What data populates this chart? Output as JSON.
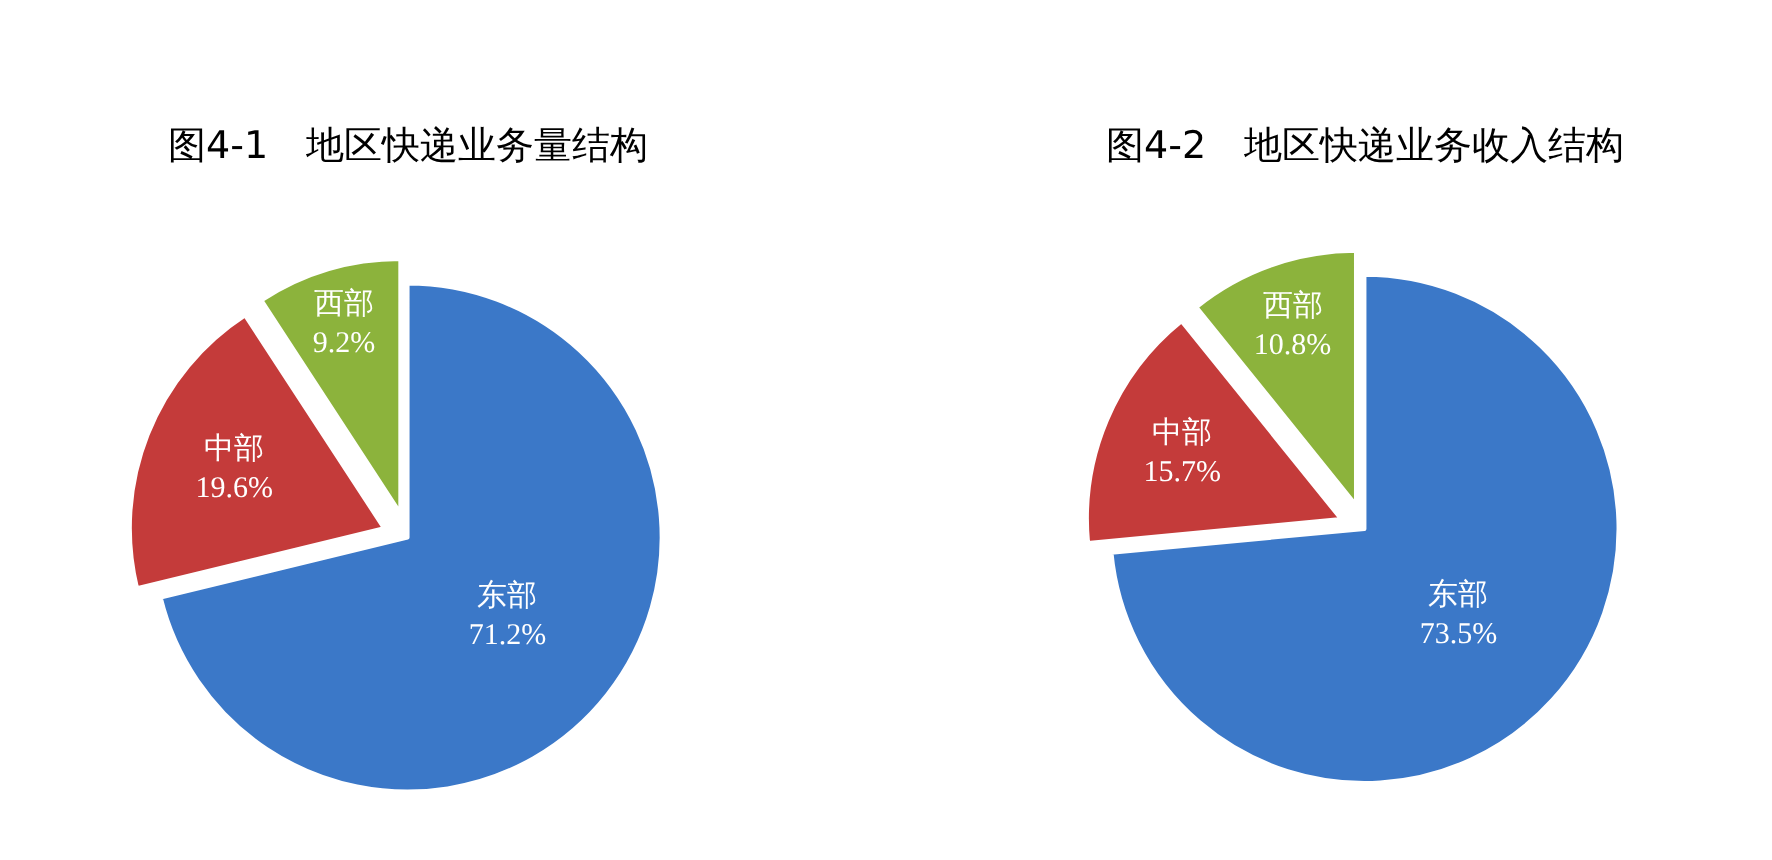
{
  "chart_data": [
    {
      "type": "pie",
      "title": "图4-1　地区快递业务量结构",
      "categories": [
        "东部",
        "中部",
        "西部"
      ],
      "values": [
        71.2,
        19.6,
        9.2
      ],
      "colors": [
        "#3b78c8",
        "#c43b3a",
        "#8cb33c"
      ],
      "value_labels": [
        "71.2%",
        "19.6%",
        "9.2%"
      ]
    },
    {
      "type": "pie",
      "title": "图4-2　地区快递业务收入结构",
      "categories": [
        "东部",
        "中部",
        "西部"
      ],
      "values": [
        73.5,
        15.7,
        10.8
      ],
      "colors": [
        "#3b78c8",
        "#c43b3a",
        "#8cb33c"
      ],
      "value_labels": [
        "73.5%",
        "15.7%",
        "10.8%"
      ]
    }
  ]
}
